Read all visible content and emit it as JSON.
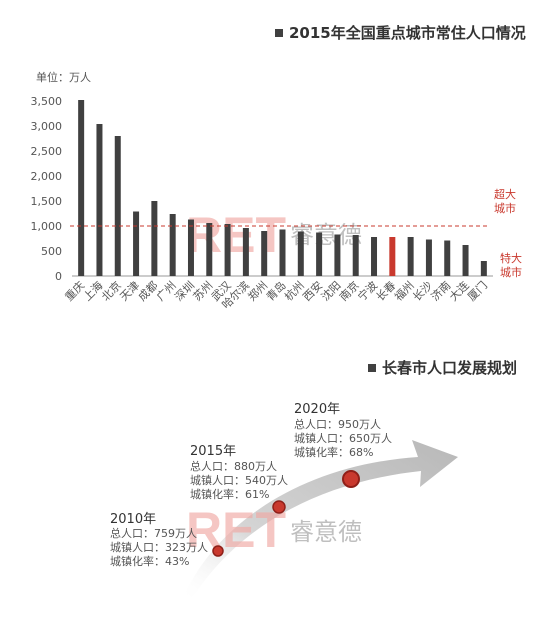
{
  "chart_data": [
    {
      "type": "bar",
      "title": "2015年全国重点城市常住人口情况",
      "unit_label": "单位：万人",
      "categories": [
        "重庆",
        "上海",
        "北京",
        "天津",
        "成都",
        "广州",
        "深圳",
        "苏州",
        "武汉",
        "哈尔滨",
        "郑州",
        "青岛",
        "杭州",
        "西安",
        "沈阳",
        "南京",
        "宁波",
        "长春",
        "福州",
        "长沙",
        "济南",
        "大连",
        "厦门"
      ],
      "values": [
        3520,
        3040,
        2800,
        1290,
        1500,
        1240,
        1130,
        1060,
        1040,
        960,
        900,
        930,
        890,
        870,
        830,
        820,
        780,
        780,
        780,
        730,
        710,
        620,
        300
      ],
      "highlight": "长春",
      "bar_color": "#404040",
      "highlight_color": "#c9392e",
      "ylim": [
        0,
        3500
      ],
      "yticks": [
        "0",
        "500",
        "1,000",
        "1,500",
        "2,000",
        "2,500",
        "3,000",
        "3,500"
      ],
      "threshold": {
        "value": 1000,
        "label_top": "超大",
        "label_bottom": "城市"
      },
      "lower_label": {
        "top": "特大",
        "bottom": "城市"
      },
      "watermark": {
        "en": "RET",
        "cn": "睿意德"
      }
    },
    {
      "type": "timeline",
      "title": "长春市人口发展规划",
      "points": [
        {
          "year": "2010年",
          "total": "总人口：759万人",
          "urban": "城镇人口：323万人",
          "rate": "城镇化率：43%"
        },
        {
          "year": "2015年",
          "total": "总人口：880万人",
          "urban": "城镇人口：540万人",
          "rate": "城镇化率：61%"
        },
        {
          "year": "2020年",
          "total": "总人口：950万人",
          "urban": "城镇人口：650万人",
          "rate": "城镇化率：68%"
        }
      ],
      "accent": "#c9392e",
      "watermark": {
        "en": "RET",
        "cn": "睿意德"
      }
    }
  ]
}
